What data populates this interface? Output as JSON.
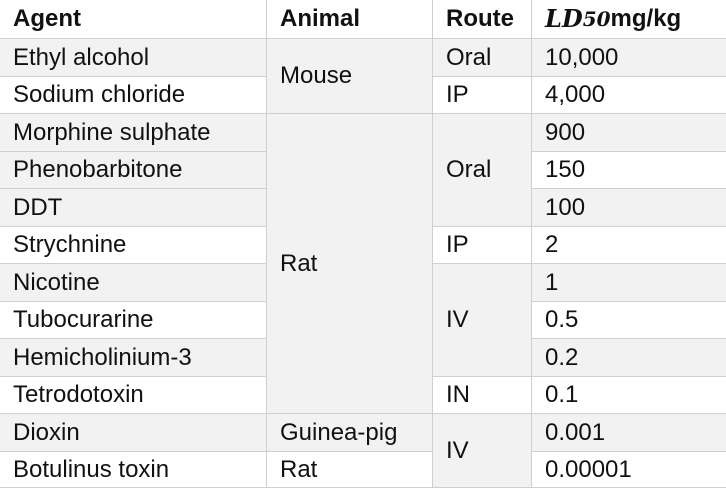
{
  "header": {
    "agent": "Agent",
    "animal": "Animal",
    "route": "Route",
    "ld_symbol": "LD",
    "ld_sub": "50",
    "ld_unit": " mg/kg"
  },
  "agents": [
    "Ethyl alcohol",
    "Sodium chloride",
    "Morphine sulphate",
    "Phenobarbitone",
    "DDT",
    "Strychnine",
    "Nicotine",
    "Tubocurarine",
    "Hemicholinium-3",
    "Tetrodotoxin",
    "Dioxin",
    "Botulinus toxin"
  ],
  "animals": [
    "Mouse",
    "Rat",
    "Guinea-pig",
    "Rat"
  ],
  "routes": [
    "Oral",
    "IP",
    "Oral",
    "IP",
    "IV",
    "IN",
    "IV"
  ],
  "ld50": [
    "10,000",
    "4,000",
    "900",
    "150",
    "100",
    "2",
    "1",
    "0.5",
    "0.2",
    "0.1",
    "0.001",
    "0.00001"
  ]
}
